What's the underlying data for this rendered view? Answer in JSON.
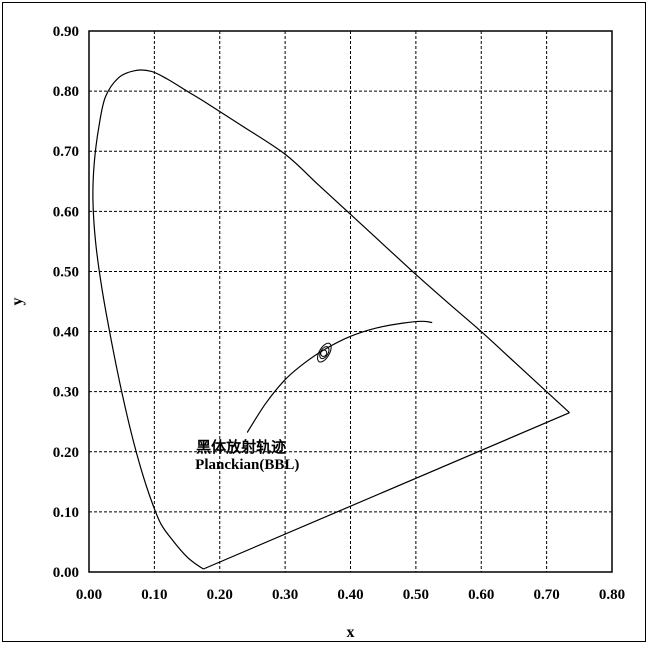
{
  "chart_data": {
    "type": "line",
    "title": "",
    "xlabel": "x",
    "ylabel": "y",
    "xlim": [
      0.0,
      0.8
    ],
    "ylim": [
      0.0,
      0.9
    ],
    "x_ticks": [
      "0.00",
      "0.10",
      "0.20",
      "0.30",
      "0.40",
      "0.50",
      "0.60",
      "0.70",
      "0.80"
    ],
    "y_ticks": [
      "0.00",
      "0.10",
      "0.20",
      "0.30",
      "0.40",
      "0.50",
      "0.60",
      "0.70",
      "0.80",
      "0.90"
    ],
    "grid": true,
    "annotations": [
      {
        "text": "黑体放射轨迹",
        "x": 0.245,
        "y": 0.205
      },
      {
        "text": "Planckian(BBL)",
        "x": 0.245,
        "y": 0.175
      }
    ],
    "series": [
      {
        "id": "spectral-locus",
        "points": [
          [
            0.175,
            0.005
          ],
          [
            0.165,
            0.012
          ],
          [
            0.15,
            0.025
          ],
          [
            0.13,
            0.05
          ],
          [
            0.11,
            0.08
          ],
          [
            0.095,
            0.12
          ],
          [
            0.08,
            0.17
          ],
          [
            0.065,
            0.23
          ],
          [
            0.05,
            0.3
          ],
          [
            0.035,
            0.38
          ],
          [
            0.02,
            0.47
          ],
          [
            0.01,
            0.55
          ],
          [
            0.006,
            0.62
          ],
          [
            0.008,
            0.68
          ],
          [
            0.015,
            0.74
          ],
          [
            0.025,
            0.79
          ],
          [
            0.045,
            0.822
          ],
          [
            0.07,
            0.834
          ],
          [
            0.095,
            0.833
          ],
          [
            0.12,
            0.82
          ],
          [
            0.15,
            0.8
          ],
          [
            0.18,
            0.78
          ],
          [
            0.23,
            0.745
          ],
          [
            0.3,
            0.695
          ],
          [
            0.35,
            0.645
          ],
          [
            0.4,
            0.595
          ],
          [
            0.45,
            0.545
          ],
          [
            0.5,
            0.495
          ],
          [
            0.55,
            0.447
          ],
          [
            0.6,
            0.4
          ],
          [
            0.65,
            0.35
          ],
          [
            0.7,
            0.3
          ],
          [
            0.735,
            0.265
          ]
        ]
      },
      {
        "id": "purple-line",
        "points": [
          [
            0.735,
            0.265
          ],
          [
            0.175,
            0.005
          ]
        ]
      },
      {
        "id": "planckian-locus",
        "points": [
          [
            0.242,
            0.232
          ],
          [
            0.27,
            0.28
          ],
          [
            0.3,
            0.32
          ],
          [
            0.33,
            0.348
          ],
          [
            0.36,
            0.37
          ],
          [
            0.4,
            0.392
          ],
          [
            0.44,
            0.406
          ],
          [
            0.48,
            0.414
          ],
          [
            0.51,
            0.417
          ],
          [
            0.525,
            0.415
          ]
        ]
      }
    ],
    "ellipses": [
      {
        "id": "macadam-ellipse-outer",
        "cx": 0.36,
        "cy": 0.365,
        "rx": 0.016,
        "ry": 0.006,
        "angle": 60
      },
      {
        "id": "macadam-ellipse-inner",
        "cx": 0.36,
        "cy": 0.365,
        "rx": 0.01,
        "ry": 0.0045,
        "angle": 60
      },
      {
        "id": "macadam-ellipse-core",
        "cx": 0.359,
        "cy": 0.364,
        "rx": 0.005,
        "ry": 0.0035,
        "angle": 60
      }
    ]
  }
}
